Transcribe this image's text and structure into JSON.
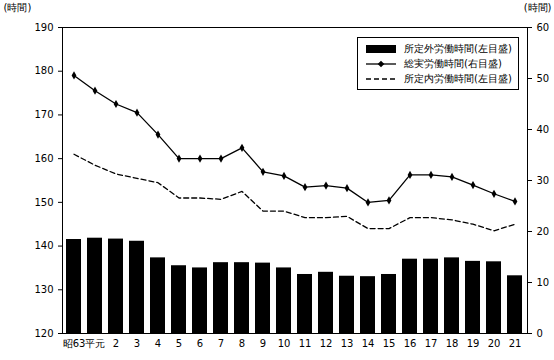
{
  "chart_data": {
    "type": "bar+line",
    "categories": [
      "昭63",
      "平元",
      "2",
      "3",
      "4",
      "5",
      "6",
      "7",
      "8",
      "9",
      "10",
      "11",
      "12",
      "13",
      "14",
      "15",
      "16",
      "17",
      "18",
      "19",
      "20",
      "21"
    ],
    "series": [
      {
        "name": "所定外労働時間(左目盛)",
        "type": "bar",
        "color": "#000000",
        "values": [
          141.5,
          141.8,
          141.6,
          141.1,
          137.3,
          135.5,
          135.0,
          136.2,
          136.2,
          136.1,
          135.0,
          133.5,
          134.0,
          133.1,
          133.0,
          133.5,
          137.0,
          137.0,
          137.3,
          136.5,
          136.4,
          133.2
        ]
      },
      {
        "name": "総実労働時間(右目盛)",
        "type": "line",
        "color": "#000000",
        "marker": "diamond",
        "line_style": "solid",
        "axis": "y2",
        "values": [
          50.6,
          47.6,
          45.0,
          43.3,
          39.0,
          34.3,
          34.3,
          34.3,
          36.4,
          31.7,
          30.9,
          28.7,
          29.0,
          28.5,
          25.7,
          26.1,
          31.1,
          31.1,
          30.7,
          29.1,
          27.4,
          25.9
        ]
      },
      {
        "name": "所定内労働時間(左目盛)",
        "type": "line",
        "color": "#000000",
        "line_style": "dashed",
        "values": [
          161.0,
          158.5,
          156.5,
          155.5,
          154.5,
          151.0,
          151.0,
          150.7,
          152.5,
          148.0,
          148.0,
          146.5,
          146.5,
          146.8,
          144.0,
          144.0,
          146.5,
          146.5,
          146.0,
          145.0,
          143.5,
          145.0
        ]
      }
    ],
    "ylim": [
      120,
      190
    ],
    "yticks": [
      120,
      130,
      140,
      150,
      160,
      170,
      180,
      190
    ],
    "y2lim": [
      0,
      60
    ],
    "y2ticks": [
      0,
      10,
      20,
      30,
      40,
      50,
      60
    ],
    "y_label": "(時間)",
    "y2_label": "(時間)",
    "legend": "top-right",
    "grid": false
  }
}
